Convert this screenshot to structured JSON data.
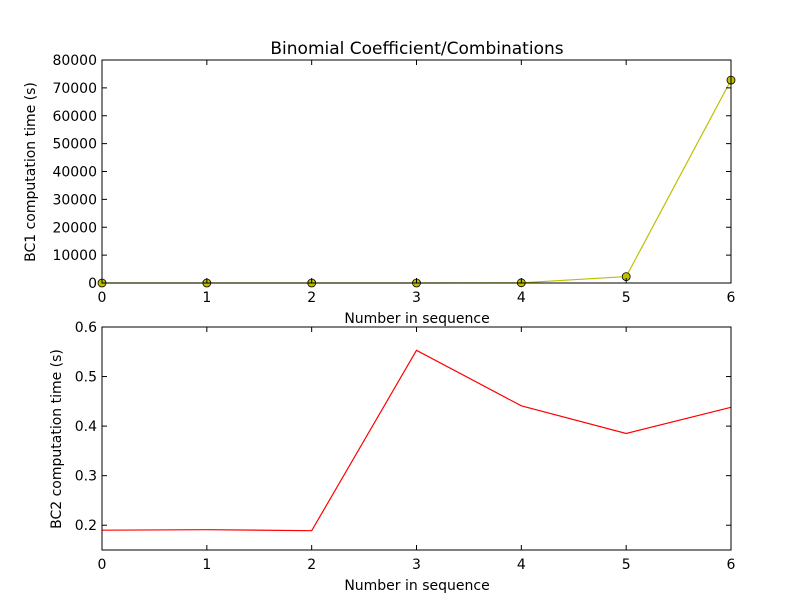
{
  "chart_data": [
    {
      "type": "line",
      "title": "Binomial Coefficient/Combinations",
      "xlabel": "Number in sequence",
      "ylabel": "BC1 computation time (s)",
      "xlim": [
        0,
        6
      ],
      "ylim": [
        0,
        80000
      ],
      "xticks": [
        0,
        1,
        2,
        3,
        4,
        5,
        6
      ],
      "yticks": [
        0,
        10000,
        20000,
        30000,
        40000,
        50000,
        60000,
        70000,
        80000
      ],
      "grid": false,
      "series": [
        {
          "x": [
            0,
            1,
            2,
            3,
            4,
            5,
            6
          ],
          "values": [
            0,
            0,
            2,
            10,
            80,
            2300,
            72800
          ],
          "color": "#bfbf00",
          "marker": "circle"
        }
      ]
    },
    {
      "type": "line",
      "title": "",
      "xlabel": "Number in sequence",
      "ylabel": "BC2 computation time (s)",
      "xlim": [
        0,
        6
      ],
      "ylim": [
        0.15,
        0.6
      ],
      "xticks": [
        0,
        1,
        2,
        3,
        4,
        5,
        6
      ],
      "yticks": [
        0.2,
        0.3,
        0.4,
        0.5,
        0.6
      ],
      "grid": false,
      "series": [
        {
          "x": [
            0,
            1,
            2,
            3,
            4,
            5,
            6
          ],
          "values": [
            0.19,
            0.191,
            0.189,
            0.553,
            0.441,
            0.385,
            0.438
          ],
          "color": "#ff0000",
          "marker": "none"
        }
      ]
    }
  ]
}
